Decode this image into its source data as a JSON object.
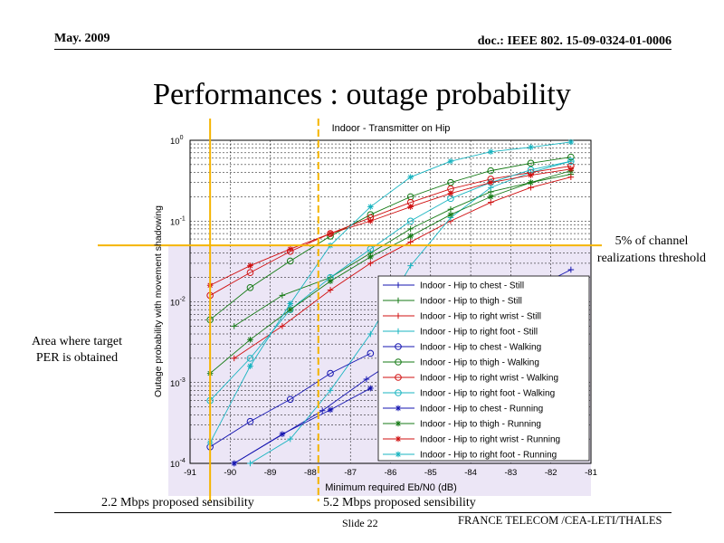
{
  "header": {
    "date": "May. 2009",
    "doc_id": "doc.: IEEE 802. 15-09-0324-01-0006"
  },
  "slide_title": "Performances : outage probability",
  "footer": {
    "slide_number": "Slide 22",
    "organizations": "FRANCE TELECOM /CEA-LETI/THALES"
  },
  "annotations": {
    "threshold_line1": "5% of channel",
    "threshold_line2": "realizations threshold",
    "area_line1": "Area where target",
    "area_line2": "PER is obtained",
    "sens_low": "2.2 Mbps proposed sensibility",
    "sens_high": "5.2 Mbps proposed sensibility"
  },
  "colors": {
    "annotation_line": "#f5b400",
    "shaded_area": "#ece6f6",
    "chest": "#1515b0",
    "thigh": "#157a15",
    "wrist": "#d01010",
    "foot": "#18b4c0"
  },
  "chart_data": {
    "type": "line",
    "title": "Indoor - Transmitter on Hip",
    "xlabel": "Minimum required Eb/N0 (dB)",
    "ylabel": "Outage probability with movement shadowing",
    "xlim": [
      -91,
      -81
    ],
    "ylim": [
      0.0001,
      1
    ],
    "yscale": "log",
    "x_ticks": [
      "-91",
      "-90",
      "-89",
      "-88",
      "-87",
      "-86",
      "-85",
      "-84",
      "-83",
      "-82",
      "-81"
    ],
    "y_ticks": [
      {
        "base": "10",
        "exp": "0",
        "value": 1
      },
      {
        "base": "10",
        "exp": "-1",
        "value": 0.1
      },
      {
        "base": "10",
        "exp": "-2",
        "value": 0.01
      },
      {
        "base": "10",
        "exp": "-3",
        "value": 0.001
      },
      {
        "base": "10",
        "exp": "-4",
        "value": 0.0001
      }
    ],
    "grid": true,
    "legend_position": "lower-right",
    "threshold": 0.05,
    "sensibility_lines": [
      -90.5,
      -87.8
    ],
    "series": [
      {
        "name": "Indoor - Hip to chest - Still",
        "color": "chest",
        "marker": "plus",
        "x": [
          -89.9,
          -87.7,
          -86.6,
          -85.5,
          -84.5,
          -83.5,
          -82.5,
          -81.5
        ],
        "y": [
          0.0001,
          0.00045,
          0.0011,
          0.0025,
          0.005,
          0.0095,
          0.014,
          0.025
        ]
      },
      {
        "name": "Indoor - Hip to thigh - Still",
        "color": "thigh",
        "marker": "plus",
        "x": [
          -89.9,
          -88.7,
          -87.5,
          -86.5,
          -85.5,
          -84.5,
          -83.5,
          -82.5,
          -81.5
        ],
        "y": [
          0.005,
          0.012,
          0.02,
          0.04,
          0.08,
          0.14,
          0.23,
          0.3,
          0.38
        ]
      },
      {
        "name": "Indoor - Hip to right wrist - Still",
        "color": "wrist",
        "marker": "plus",
        "x": [
          -89.9,
          -88.7,
          -87.5,
          -86.5,
          -85.5,
          -84.5,
          -83.5,
          -82.5,
          -81.5
        ],
        "y": [
          0.002,
          0.005,
          0.014,
          0.03,
          0.055,
          0.1,
          0.17,
          0.26,
          0.35
        ]
      },
      {
        "name": "Indoor - Hip to right foot - Still",
        "color": "foot",
        "marker": "plus",
        "x": [
          -89.5,
          -88.5,
          -87.5,
          -86.5,
          -85.5,
          -84.5,
          -83.5,
          -82.5,
          -81.5
        ],
        "y": [
          0.0001,
          0.0002,
          0.0008,
          0.004,
          0.028,
          0.11,
          0.26,
          0.4,
          0.55
        ]
      },
      {
        "name": "Indoor - Hip to chest - Walking",
        "color": "chest",
        "marker": "circle",
        "x": [
          -90.5,
          -89.5,
          -88.5,
          -87.5,
          -86.5
        ],
        "y": [
          0.00016,
          0.00033,
          0.00062,
          0.0013,
          0.0023
        ]
      },
      {
        "name": "Indoor - Hip to thigh - Walking",
        "color": "thigh",
        "marker": "circle",
        "x": [
          -90.5,
          -89.5,
          -88.5,
          -87.5,
          -86.5,
          -85.5,
          -84.5,
          -83.5,
          -82.5,
          -81.5
        ],
        "y": [
          0.006,
          0.015,
          0.032,
          0.065,
          0.12,
          0.2,
          0.3,
          0.42,
          0.52,
          0.62
        ]
      },
      {
        "name": "Indoor - Hip to right wrist - Walking",
        "color": "wrist",
        "marker": "circle",
        "x": [
          -90.5,
          -89.5,
          -88.5,
          -87.5,
          -86.5,
          -85.5,
          -84.5,
          -83.5,
          -82.5,
          -81.5
        ],
        "y": [
          0.012,
          0.023,
          0.042,
          0.07,
          0.11,
          0.17,
          0.25,
          0.33,
          0.4,
          0.48
        ]
      },
      {
        "name": "Indoor - Hip to right foot - Walking",
        "color": "foot",
        "marker": "circle",
        "x": [
          -90.5,
          -89.5,
          -88.5,
          -87.5,
          -86.5,
          -85.5,
          -84.5,
          -83.5,
          -82.5,
          -81.5
        ],
        "y": [
          0.0006,
          0.002,
          0.008,
          0.02,
          0.045,
          0.1,
          0.19,
          0.3,
          0.43,
          0.55
        ]
      },
      {
        "name": "Indoor - Hip to chest - Running",
        "color": "chest",
        "marker": "star",
        "x": [
          -89.9,
          -88.7,
          -87.5,
          -86.5
        ],
        "y": [
          0.0001,
          0.00023,
          0.00046,
          0.00085
        ]
      },
      {
        "name": "Indoor - Hip to thigh - Running",
        "color": "thigh",
        "marker": "star",
        "x": [
          -90.5,
          -89.5,
          -88.5,
          -87.5,
          -86.5,
          -85.5,
          -84.5,
          -83.5,
          -82.5,
          -81.5
        ],
        "y": [
          0.0013,
          0.0034,
          0.008,
          0.018,
          0.036,
          0.065,
          0.12,
          0.2,
          0.3,
          0.42
        ]
      },
      {
        "name": "Indoor - Hip to right wrist - Running",
        "color": "wrist",
        "marker": "star",
        "x": [
          -90.5,
          -89.5,
          -88.5,
          -87.5,
          -86.5,
          -85.5,
          -84.5,
          -83.5,
          -82.5,
          -81.5
        ],
        "y": [
          0.016,
          0.028,
          0.045,
          0.07,
          0.1,
          0.15,
          0.22,
          0.3,
          0.37,
          0.44
        ]
      },
      {
        "name": "Indoor - Hip to right foot - Running",
        "color": "foot",
        "marker": "star",
        "x": [
          -90.5,
          -89.5,
          -88.5,
          -87.5,
          -86.5,
          -85.5,
          -84.5,
          -83.5,
          -82.5,
          -81.5
        ],
        "y": [
          0.00018,
          0.0016,
          0.0095,
          0.05,
          0.15,
          0.35,
          0.55,
          0.72,
          0.82,
          0.95
        ]
      }
    ]
  }
}
